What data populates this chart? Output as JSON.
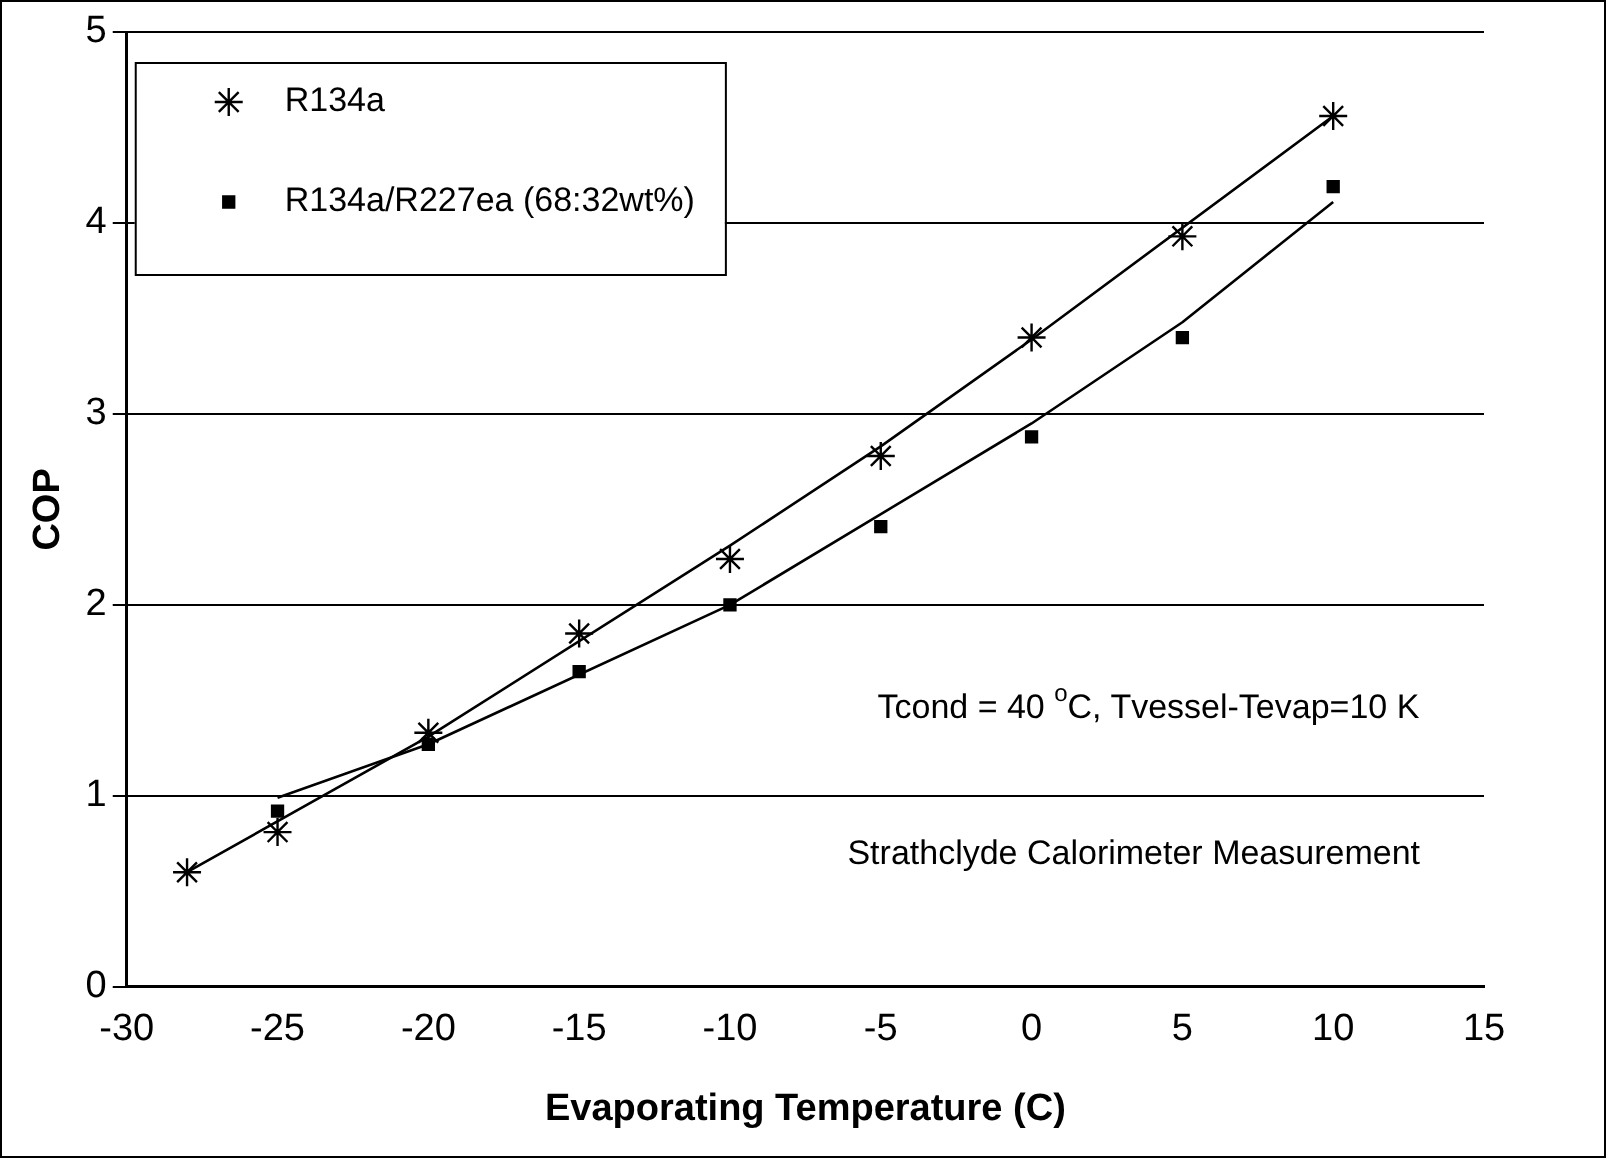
{
  "chart_data": {
    "type": "scatter",
    "xlabel": "Evaporating Temperature (C)",
    "ylabel": "COP",
    "xlim": [
      -30,
      15
    ],
    "xticks": [
      -30,
      -25,
      -20,
      -15,
      -10,
      -5,
      0,
      5,
      10,
      15
    ],
    "ylim": [
      0,
      5
    ],
    "yticks": [
      0,
      1,
      2,
      3,
      4,
      5
    ],
    "grid": "y",
    "legend": "top left",
    "series": [
      {
        "name": "R134a",
        "color": "#000000",
        "marker": "cross",
        "x": [
          -28,
          -25,
          -20,
          -15,
          -10,
          -5,
          0,
          5,
          10
        ],
        "values": [
          0.6,
          0.81,
          1.33,
          1.85,
          2.24,
          2.78,
          3.4,
          3.93,
          4.56
        ]
      },
      {
        "name": "R134a/R227ea (68:32wt%)",
        "color": "#000000",
        "marker": "square",
        "x": [
          -25,
          -20,
          -15,
          -10,
          -5,
          0,
          5,
          10
        ],
        "values": [
          0.92,
          1.27,
          1.65,
          2.0,
          2.41,
          2.88,
          3.4,
          4.19
        ]
      },
      {
        "type": "line",
        "color": "#000000",
        "marker": "none",
        "x": [
          -28,
          -20,
          -10,
          -5,
          0,
          10
        ],
        "values": [
          0.6,
          1.31,
          2.31,
          2.83,
          3.39,
          4.56
        ]
      },
      {
        "type": "line",
        "color": "#000000",
        "marker": "none",
        "x": [
          -25,
          -20,
          -10,
          0,
          5,
          10
        ],
        "values": [
          0.99,
          1.27,
          2.0,
          2.95,
          3.48,
          4.11
        ]
      }
    ],
    "annotations": [
      "Tcond = 40 $^{o}$C, Tvessel-Tevap=10 K",
      "Strathclyde Calorimeter Measurement"
    ]
  }
}
